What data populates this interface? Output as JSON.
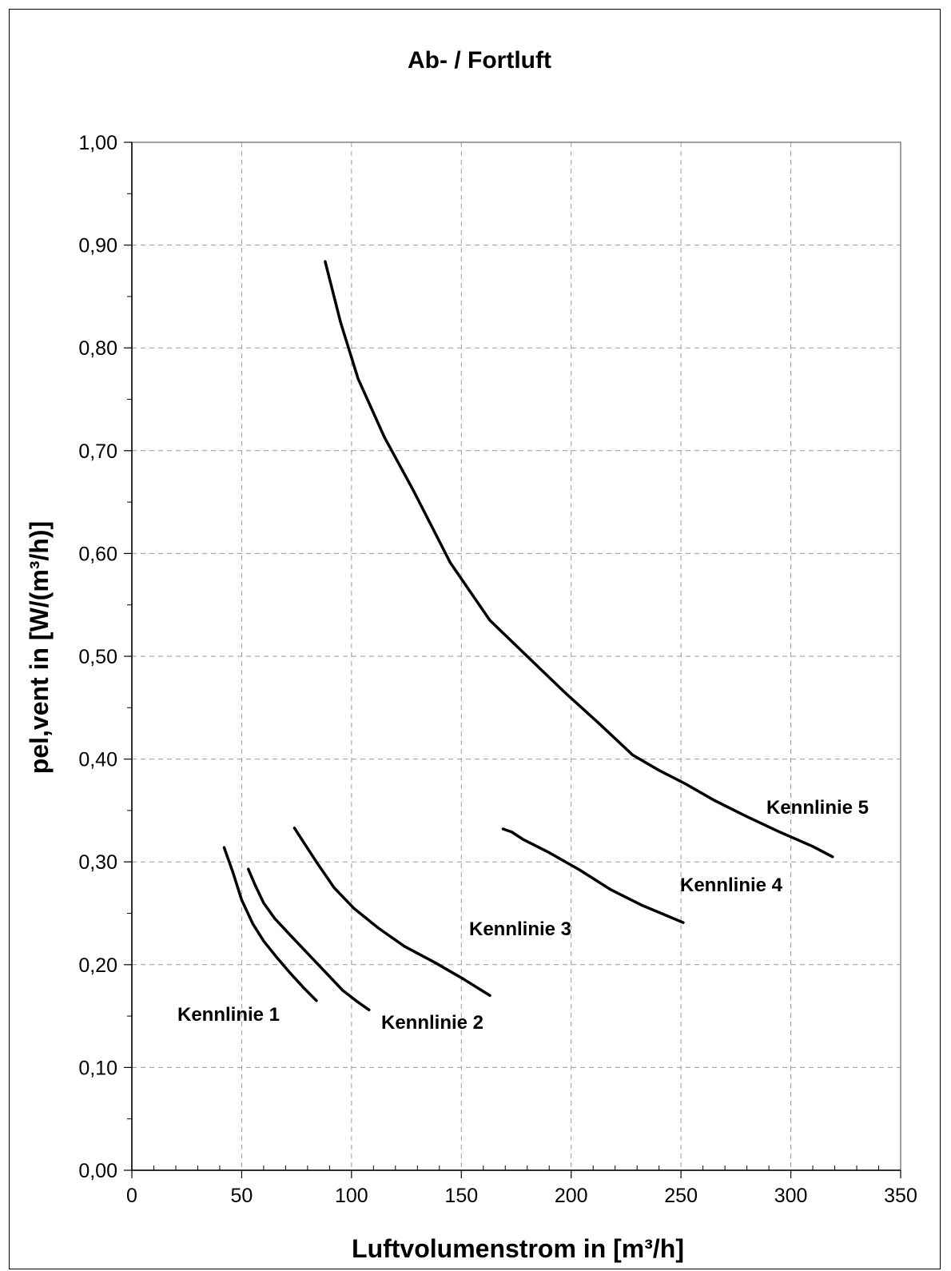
{
  "chart_data": {
    "type": "line",
    "title": "Ab- / Fortluft",
    "xlabel": "Luftvolumenstrom in [m³/h]",
    "ylabel": "pel,vent in [W/(m³/h)]",
    "xlim": [
      0,
      350
    ],
    "ylim": [
      0,
      1.0
    ],
    "grid": true,
    "x_ticks": [
      "0",
      "50",
      "100",
      "150",
      "200",
      "250",
      "300",
      "350"
    ],
    "y_ticks": [
      "0,00",
      "0,10",
      "0,20",
      "0,30",
      "0,40",
      "0,50",
      "0,60",
      "0,70",
      "0,80",
      "0,90",
      "1,00"
    ],
    "series": [
      {
        "name": "Kennlinie 1",
        "x": [
          42,
          46,
          50,
          55,
          60,
          66,
          72,
          78,
          84
        ],
        "y": [
          0.314,
          0.29,
          0.263,
          0.24,
          0.223,
          0.207,
          0.192,
          0.178,
          0.165
        ]
      },
      {
        "name": "Kennlinie 2",
        "x": [
          53,
          56,
          60,
          65,
          72,
          80,
          88,
          96,
          102,
          108
        ],
        "y": [
          0.293,
          0.278,
          0.26,
          0.245,
          0.229,
          0.211,
          0.193,
          0.175,
          0.165,
          0.156
        ]
      },
      {
        "name": "Kennlinie 3",
        "x": [
          74,
          77,
          84,
          92,
          101,
          112,
          124,
          138,
          151,
          163
        ],
        "y": [
          0.333,
          0.323,
          0.3,
          0.275,
          0.255,
          0.236,
          0.218,
          0.202,
          0.186,
          0.17
        ]
      },
      {
        "name": "Kennlinie 4",
        "x": [
          169,
          173,
          178,
          190,
          204,
          218,
          232,
          251
        ],
        "y": [
          0.332,
          0.329,
          0.322,
          0.309,
          0.292,
          0.273,
          0.258,
          0.241
        ]
      },
      {
        "name": "Kennlinie 5",
        "x": [
          88,
          95,
          103,
          115,
          128,
          145,
          163,
          180,
          197,
          212,
          228,
          240,
          252,
          265,
          280,
          295,
          310,
          319
        ],
        "y": [
          0.884,
          0.825,
          0.77,
          0.713,
          0.662,
          0.591,
          0.535,
          0.5,
          0.465,
          0.436,
          0.404,
          0.389,
          0.376,
          0.36,
          0.344,
          0.329,
          0.315,
          0.305
        ]
      }
    ]
  }
}
